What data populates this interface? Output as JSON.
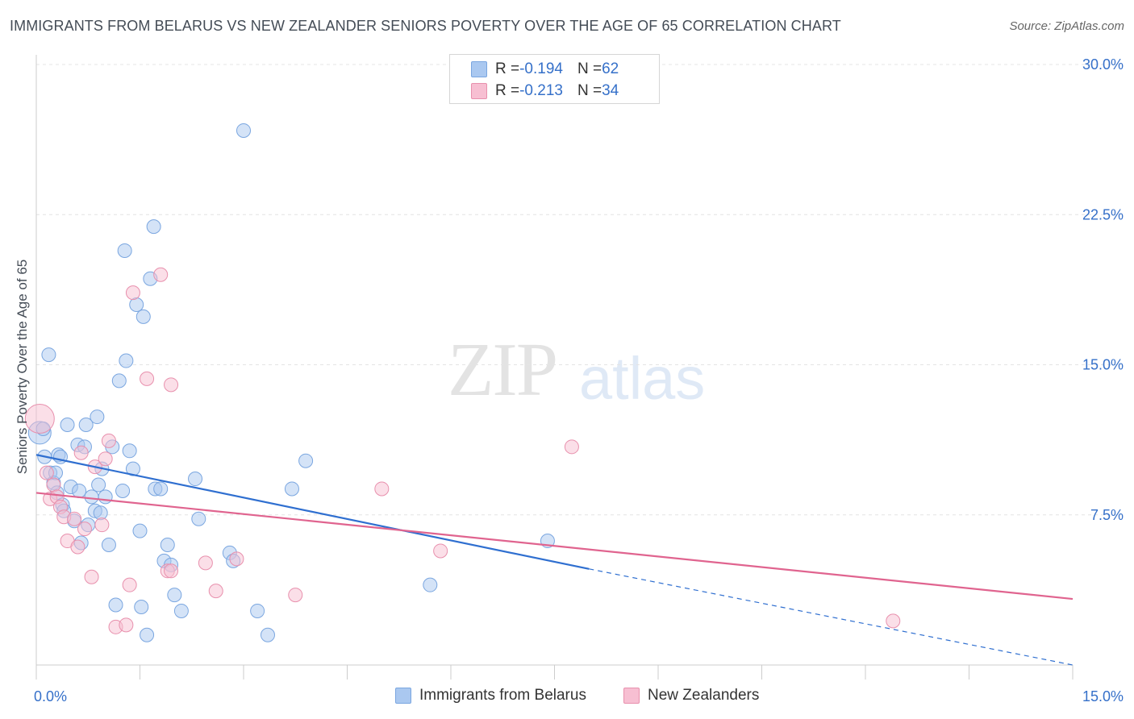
{
  "title": "IMMIGRANTS FROM BELARUS VS NEW ZEALANDER SENIORS POVERTY OVER THE AGE OF 65 CORRELATION CHART",
  "source": "Source: ZipAtlas.com",
  "watermark": {
    "zip": "ZIP",
    "atlas": "atlas"
  },
  "legend": {
    "rows": [
      {
        "r_label": "R = ",
        "r_value": "-0.194",
        "n_label": "N = ",
        "n_value": "62",
        "color": "#aac8f0",
        "border": "#7aa6e0"
      },
      {
        "r_label": "R = ",
        "r_value": "-0.213",
        "n_label": "N = ",
        "n_value": "34",
        "color": "#f7bfd2",
        "border": "#e890ad"
      }
    ],
    "bottom": [
      {
        "label": "Immigrants from Belarus",
        "color": "#aac8f0",
        "border": "#7aa6e0"
      },
      {
        "label": "New Zealanders",
        "color": "#f7bfd2",
        "border": "#e890ad"
      }
    ]
  },
  "chart_data": {
    "type": "scatter",
    "title": "IMMIGRANTS FROM BELARUS VS NEW ZEALANDER SENIORS POVERTY OVER THE AGE OF 65 CORRELATION CHART",
    "xlabel": "",
    "ylabel": "Seniors Poverty Over the Age of 65",
    "xlim": [
      0,
      15
    ],
    "ylim": [
      0,
      30
    ],
    "x_tick_labels": [
      {
        "value": 0,
        "label": "0.0%"
      },
      {
        "value": 15,
        "label": "15.0%"
      }
    ],
    "y_tick_labels": [
      {
        "value": 7.5,
        "label": "7.5%"
      },
      {
        "value": 15,
        "label": "15.0%"
      },
      {
        "value": 22.5,
        "label": "22.5%"
      },
      {
        "value": 30,
        "label": "30.0%"
      }
    ],
    "grid": true,
    "series": [
      {
        "name": "Immigrants from Belarus",
        "color": "#aac8f0",
        "stroke": "#7aa6e0",
        "points": [
          [
            0.05,
            11.6
          ],
          [
            0.1,
            11.8
          ],
          [
            0.12,
            10.4
          ],
          [
            0.18,
            15.5
          ],
          [
            0.2,
            9.6
          ],
          [
            0.25,
            9.1
          ],
          [
            0.28,
            9.6
          ],
          [
            0.3,
            8.6
          ],
          [
            0.32,
            10.5
          ],
          [
            0.35,
            10.4
          ],
          [
            0.38,
            8.0
          ],
          [
            0.4,
            7.7
          ],
          [
            0.45,
            12.0
          ],
          [
            0.5,
            8.9
          ],
          [
            0.55,
            7.2
          ],
          [
            0.6,
            11.0
          ],
          [
            0.62,
            8.7
          ],
          [
            0.65,
            6.1
          ],
          [
            0.7,
            10.9
          ],
          [
            0.72,
            12.0
          ],
          [
            0.75,
            7.0
          ],
          [
            0.8,
            8.4
          ],
          [
            0.85,
            7.7
          ],
          [
            0.88,
            12.4
          ],
          [
            0.9,
            9.0
          ],
          [
            0.93,
            7.6
          ],
          [
            0.95,
            9.8
          ],
          [
            1.0,
            8.4
          ],
          [
            1.05,
            6.0
          ],
          [
            1.1,
            10.9
          ],
          [
            1.15,
            3.0
          ],
          [
            1.2,
            14.2
          ],
          [
            1.25,
            8.7
          ],
          [
            1.3,
            15.2
          ],
          [
            1.35,
            10.7
          ],
          [
            1.4,
            9.8
          ],
          [
            1.45,
            18.0
          ],
          [
            1.5,
            6.7
          ],
          [
            1.52,
            2.9
          ],
          [
            1.55,
            17.4
          ],
          [
            1.6,
            1.5
          ],
          [
            1.65,
            19.3
          ],
          [
            1.7,
            21.9
          ],
          [
            1.72,
            8.8
          ],
          [
            1.8,
            8.8
          ],
          [
            1.85,
            5.2
          ],
          [
            1.9,
            6.0
          ],
          [
            1.95,
            5.0
          ],
          [
            2.0,
            3.5
          ],
          [
            2.1,
            2.7
          ],
          [
            2.3,
            9.3
          ],
          [
            2.35,
            7.3
          ],
          [
            2.8,
            5.6
          ],
          [
            2.85,
            5.2
          ],
          [
            3.0,
            26.7
          ],
          [
            3.2,
            2.7
          ],
          [
            3.35,
            1.5
          ],
          [
            3.7,
            8.8
          ],
          [
            3.9,
            10.2
          ],
          [
            5.7,
            4.0
          ],
          [
            7.4,
            6.2
          ],
          [
            1.28,
            20.7
          ]
        ],
        "trend": {
          "x0": 0,
          "y0": 10.5,
          "x1": 8.0,
          "y1": 4.8,
          "dash_x1": 15.0,
          "dash_y1": 0.0
        }
      },
      {
        "name": "New Zealanders",
        "color": "#f7bfd2",
        "stroke": "#e890ad",
        "points": [
          [
            0.05,
            12.3
          ],
          [
            0.15,
            9.6
          ],
          [
            0.2,
            8.3
          ],
          [
            0.25,
            9.0
          ],
          [
            0.3,
            8.4
          ],
          [
            0.35,
            7.9
          ],
          [
            0.4,
            7.4
          ],
          [
            0.45,
            6.2
          ],
          [
            0.55,
            7.3
          ],
          [
            0.6,
            5.9
          ],
          [
            0.65,
            10.6
          ],
          [
            0.7,
            6.8
          ],
          [
            0.8,
            4.4
          ],
          [
            0.85,
            9.9
          ],
          [
            0.95,
            7.0
          ],
          [
            1.0,
            10.3
          ],
          [
            1.05,
            11.2
          ],
          [
            1.15,
            1.9
          ],
          [
            1.3,
            2.0
          ],
          [
            1.35,
            4.0
          ],
          [
            1.4,
            18.6
          ],
          [
            1.6,
            14.3
          ],
          [
            1.8,
            19.5
          ],
          [
            1.9,
            4.7
          ],
          [
            1.95,
            4.7
          ],
          [
            1.95,
            14.0
          ],
          [
            2.45,
            5.1
          ],
          [
            2.6,
            3.7
          ],
          [
            2.9,
            5.3
          ],
          [
            3.75,
            3.5
          ],
          [
            5.0,
            8.8
          ],
          [
            5.85,
            5.7
          ],
          [
            7.75,
            10.9
          ],
          [
            12.4,
            2.2
          ]
        ],
        "trend": {
          "x0": 0,
          "y0": 8.6,
          "x1": 15.0,
          "y1": 3.3
        }
      }
    ]
  }
}
